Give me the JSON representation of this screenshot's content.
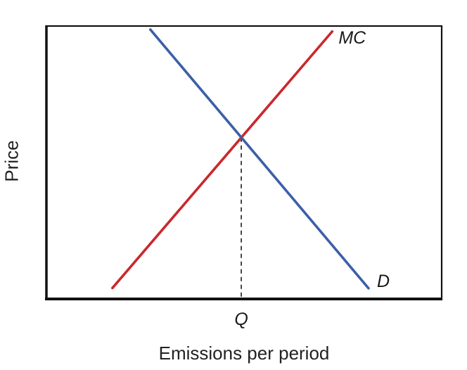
{
  "chart_data": {
    "type": "line",
    "title": "",
    "xlabel": "Emissions per period",
    "ylabel": "Price",
    "xlim": [
      0,
      100
    ],
    "ylim": [
      0,
      100
    ],
    "grid": false,
    "legend": "none",
    "background": "#ffffff",
    "axis_color": "#111111",
    "series": [
      {
        "name": "marginal-cost",
        "label": "MC",
        "color": "#c9282d",
        "x": [
          16.7,
          72.3
        ],
        "y": [
          4,
          98
        ],
        "label_offset": [
          9,
          17
        ]
      },
      {
        "name": "demand",
        "label": "D",
        "color": "#3c5fa7",
        "x": [
          26.3,
          81.5
        ],
        "y": [
          98.7,
          3.9
        ],
        "label_offset": [
          12,
          -2
        ]
      }
    ],
    "guide": {
      "label": "Q",
      "x": 49.3,
      "y": 59.1,
      "style": "dashed",
      "color": "#333333"
    }
  }
}
